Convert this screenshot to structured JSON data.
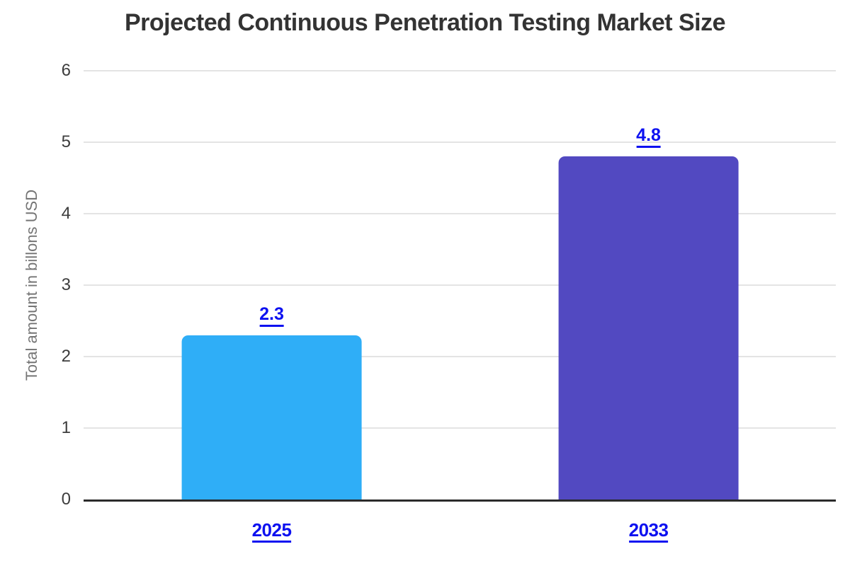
{
  "title": "Projected Continuous Penetration Testing Market Size",
  "chart_data": {
    "type": "bar",
    "categories": [
      "2025",
      "2033"
    ],
    "values": [
      2.3,
      4.8
    ],
    "value_labels": [
      "2.3",
      "4.8"
    ],
    "bar_colors": [
      "#2faef7",
      "#5249c1"
    ],
    "title": "Projected Continuous Penetration Testing Market Size",
    "xlabel": "",
    "ylabel": "Total amount in billons USD",
    "ylim": [
      0,
      6
    ],
    "yticks": [
      "0",
      "1",
      "2",
      "3",
      "4",
      "5",
      "6"
    ],
    "grid": true,
    "legend": false,
    "bar_centers_pct": [
      25,
      75.1
    ]
  },
  "colors": {
    "background": "#ffffff",
    "title_text": "#333333",
    "tick_text": "#3d3d3d",
    "ylabel_text": "#757575",
    "gridline": "#e4e4e4",
    "axis_line": "#2b2b2b",
    "link_blue": "#0d11f0",
    "bar_2025": "#2faef7",
    "bar_2033": "#5249c1"
  }
}
